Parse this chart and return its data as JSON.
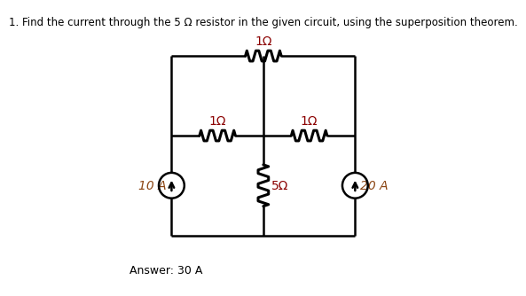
{
  "title": "1. Find the current through the 5 Ω resistor in the given circuit, using the superposition theorem.",
  "answer": "Answer: 30 A",
  "background_color": "#ffffff",
  "line_color": "#000000",
  "text_color": "#000000",
  "title_fontsize": 8.5,
  "label_fontsize": 10,
  "answer_fontsize": 9,
  "resistor_label_1Ohm_top": "1Ω",
  "resistor_label_1Ohm_left": "1Ω",
  "resistor_label_1Ohm_right": "1Ω",
  "resistor_label_5Ohm": "5Ω",
  "source_left_label": "10 A",
  "source_right_label": "20 A",
  "xL": 1.2,
  "xM": 3.5,
  "xR": 5.8,
  "yT": 5.8,
  "yMid": 3.8,
  "yB": 1.3
}
